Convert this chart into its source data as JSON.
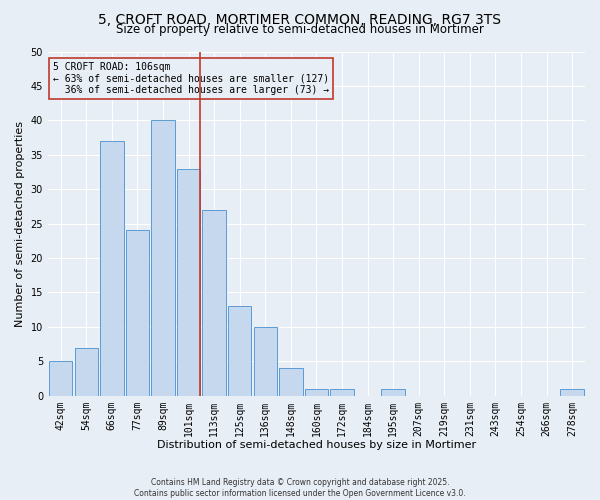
{
  "title": "5, CROFT ROAD, MORTIMER COMMON, READING, RG7 3TS",
  "subtitle": "Size of property relative to semi-detached houses in Mortimer",
  "xlabel": "Distribution of semi-detached houses by size in Mortimer",
  "ylabel": "Number of semi-detached properties",
  "categories": [
    "42sqm",
    "54sqm",
    "66sqm",
    "77sqm",
    "89sqm",
    "101sqm",
    "113sqm",
    "125sqm",
    "136sqm",
    "148sqm",
    "160sqm",
    "172sqm",
    "184sqm",
    "195sqm",
    "207sqm",
    "219sqm",
    "231sqm",
    "243sqm",
    "254sqm",
    "266sqm",
    "278sqm"
  ],
  "values": [
    5,
    7,
    37,
    24,
    40,
    33,
    27,
    13,
    10,
    4,
    1,
    1,
    0,
    1,
    0,
    0,
    0,
    0,
    0,
    0,
    1
  ],
  "bar_color": "#c5d8ed",
  "bar_edge_color": "#5b9bd5",
  "ylim": [
    0,
    50
  ],
  "property_index": 5,
  "annotation_line1": "5 CROFT ROAD: 106sqm",
  "annotation_line2": "← 63% of semi-detached houses are smaller (127)",
  "annotation_line3": "  36% of semi-detached houses are larger (73) →",
  "vline_color": "#c0392b",
  "background_color": "#e8eef5",
  "grid_color": "#ffffff",
  "title_fontsize": 10,
  "subtitle_fontsize": 8.5,
  "tick_fontsize": 7,
  "ylabel_fontsize": 8,
  "xlabel_fontsize": 8,
  "footer_line1": "Contains HM Land Registry data © Crown copyright and database right 2025.",
  "footer_line2": "Contains public sector information licensed under the Open Government Licence v3.0."
}
